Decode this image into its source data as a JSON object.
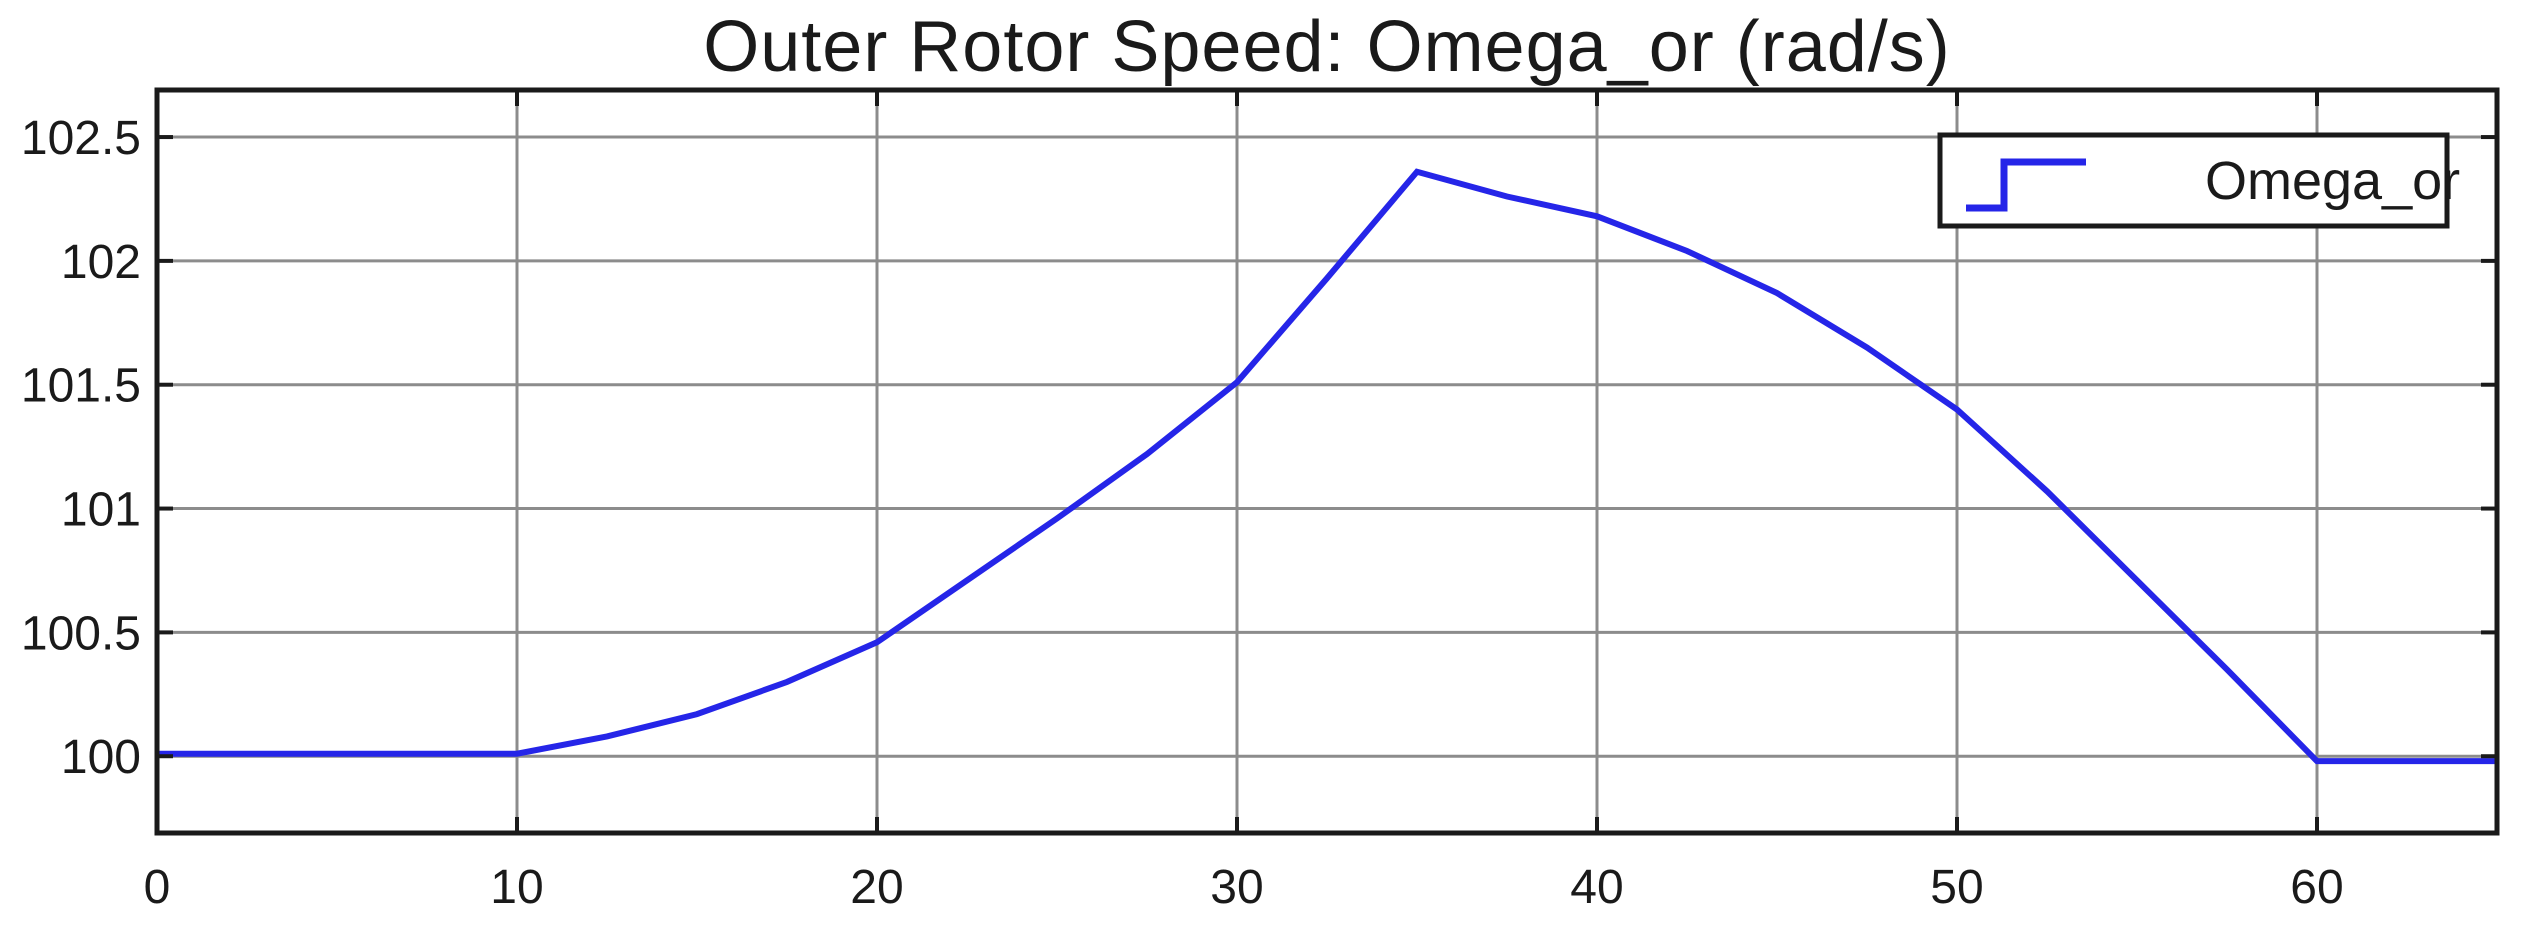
{
  "figure": {
    "background": "#ffffff"
  },
  "chart_data": {
    "type": "line",
    "title": "Outer Rotor Speed: Omega_or (rad/s)",
    "xlabel": "",
    "ylabel": "",
    "xlim": [
      0,
      65
    ],
    "ylim": [
      99.69,
      102.69
    ],
    "xticks": {
      "values": [
        0,
        10,
        20,
        30,
        40,
        50,
        60
      ],
      "labels": [
        "0",
        "10",
        "20",
        "30",
        "40",
        "50",
        "60"
      ]
    },
    "yticks": {
      "values": [
        100,
        100.5,
        101,
        101.5,
        102,
        102.5
      ],
      "labels": [
        "100",
        "100.5",
        "101",
        "101.5",
        "102",
        "102.5"
      ]
    },
    "grid": true,
    "legend": {
      "position": "top-right",
      "entries": [
        {
          "label": "Omega_or",
          "marker": "step-line",
          "color": "#2525e8"
        }
      ]
    },
    "series": [
      {
        "name": "Omega_or",
        "color": "#2525e8",
        "x": [
          0,
          5,
          10,
          12.5,
          15,
          17.5,
          20,
          22.5,
          25,
          27.5,
          30,
          32.5,
          35,
          37.5,
          40,
          42.5,
          45,
          47.5,
          50,
          52.5,
          55,
          57.5,
          60,
          62.5,
          65
        ],
        "y": [
          100.01,
          100.01,
          100.01,
          100.08,
          100.17,
          100.3,
          100.46,
          100.71,
          100.96,
          101.22,
          101.51,
          101.93,
          102.36,
          102.26,
          102.18,
          102.04,
          101.87,
          101.65,
          101.4,
          101.07,
          100.71,
          100.35,
          99.98,
          99.98,
          99.98
        ]
      }
    ],
    "colors": {
      "line": "#2525e8",
      "grid": "#8c8c8c",
      "axis": "#1a1a1a",
      "text": "#1a1a1a",
      "plot_background": "#ffffff",
      "legend_background": "#ffffff",
      "legend_border": "#1a1a1a"
    }
  }
}
